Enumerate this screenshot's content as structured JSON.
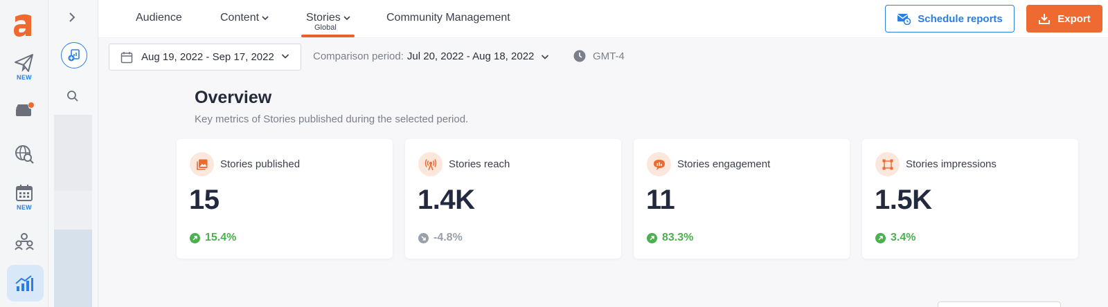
{
  "rail": {
    "new_badge": "NEW"
  },
  "tabs": {
    "audience": "Audience",
    "content": "Content",
    "stories": "Stories",
    "stories_sub": "Global",
    "community": "Community Management"
  },
  "actions": {
    "schedule": "Schedule reports",
    "export": "Export"
  },
  "filters": {
    "date_range": "Aug 19, 2022 - Sep 17, 2022",
    "comparison_label": "Comparison period:",
    "comparison_value": "Jul 20, 2022 - Aug 18, 2022",
    "timezone": "GMT-4"
  },
  "overview": {
    "title": "Overview",
    "subtitle": "Key metrics of Stories published during the selected period.",
    "cards": [
      {
        "label": "Stories published",
        "value": "15",
        "change": "15.4%",
        "trend": "up",
        "icon": "image-icon"
      },
      {
        "label": "Stories reach",
        "value": "1.4K",
        "change": "-4.8%",
        "trend": "down",
        "icon": "broadcast-icon"
      },
      {
        "label": "Stories engagement",
        "value": "11",
        "change": "83.3%",
        "trend": "up",
        "icon": "chat-icon"
      },
      {
        "label": "Stories impressions",
        "value": "1.5K",
        "change": "3.4%",
        "trend": "up",
        "icon": "frame-icon"
      }
    ]
  },
  "colors": {
    "accent": "#ef6a30",
    "primary": "#2a7de1",
    "positive": "#4caf50",
    "neutral": "#9aa0aa"
  }
}
